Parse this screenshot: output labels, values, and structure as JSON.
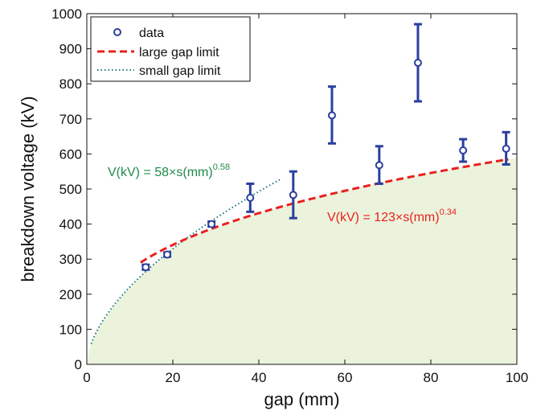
{
  "chart_data": {
    "type": "scatter",
    "xlabel": "gap (mm)",
    "ylabel": "breakdown voltage (kV)",
    "xlim": [
      0,
      100
    ],
    "ylim": [
      0,
      1000
    ],
    "x_ticks": [
      0,
      20,
      40,
      60,
      80,
      100
    ],
    "y_ticks": [
      0,
      100,
      200,
      300,
      400,
      500,
      600,
      700,
      800,
      900,
      1000
    ],
    "grid": false,
    "legend_position": "top-left",
    "legend": [
      "data",
      "large gap limit",
      "small gap limit"
    ],
    "colors": {
      "data": "#2b3f9e",
      "large_gap": "#e8211f",
      "small_gap": "#1f7a8a",
      "shade": "#ecf3dc",
      "annot_small": "#1f8a4a",
      "annot_large": "#e8211f"
    },
    "series": [
      {
        "name": "data",
        "type": "scatter",
        "x": [
          13.7,
          18.7,
          29,
          38,
          48,
          57,
          68,
          77,
          87.5,
          97.5
        ],
        "y": [
          277,
          313,
          400,
          475,
          483,
          710,
          568,
          860,
          610,
          615
        ],
        "err_low": [
          270,
          307,
          393,
          435,
          417,
          630,
          515,
          750,
          578,
          570
        ],
        "err_high": [
          284,
          319,
          407,
          515,
          550,
          792,
          622,
          970,
          642,
          662
        ]
      },
      {
        "name": "large gap limit",
        "type": "line",
        "style": "dashed",
        "coef": 123,
        "exponent": 0.34,
        "x_range": [
          12.5,
          98
        ]
      },
      {
        "name": "small gap limit",
        "type": "line",
        "style": "dotted",
        "coef": 58,
        "exponent": 0.58,
        "x_range": [
          1,
          45
        ]
      }
    ],
    "annotations": [
      {
        "id": "small",
        "text": "V(kV) = 58×s(mm)",
        "sup": "0.58",
        "color": "#1f8a4a"
      },
      {
        "id": "large",
        "text": "V(kV) = 123×s(mm)",
        "sup": "0.34",
        "color": "#e8211f"
      }
    ]
  }
}
